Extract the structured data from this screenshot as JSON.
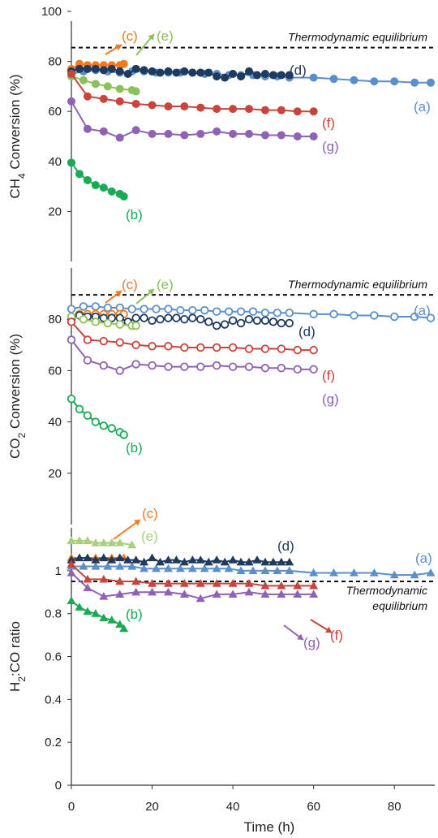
{
  "chart_data": [
    {
      "type": "line",
      "ylabel": "CH4 Conversion (%)",
      "ylabel_main": "CH",
      "ylabel_sub": "4",
      "ylabel_rest": " Conversion (%)",
      "ylim": [
        0,
        100
      ],
      "yticks": [
        "20",
        "40",
        "60",
        "80",
        "100"
      ],
      "grid": false,
      "equilibrium": {
        "label": "Thermodynamic equilibrium",
        "value": 85.5
      },
      "series": [
        {
          "name": "(a)",
          "color": "#5b8fc9",
          "marker": "circle",
          "filled": true,
          "x": [
            0,
            3,
            6,
            9,
            12,
            15,
            18,
            21,
            24,
            27,
            30,
            33,
            36,
            39,
            42,
            45,
            48,
            51,
            54,
            60,
            65,
            70,
            75,
            80,
            85,
            89
          ],
          "y": [
            75,
            76,
            76.5,
            76,
            75.5,
            76,
            76,
            75.5,
            75.5,
            75.5,
            75.5,
            75,
            75,
            74.5,
            74.5,
            74.5,
            74,
            74,
            73.5,
            73.5,
            73,
            72.5,
            72,
            72,
            71.5,
            71.5
          ]
        },
        {
          "name": "(b)",
          "color": "#1aaa55",
          "marker": "circle",
          "filled": true,
          "x": [
            0,
            2,
            4,
            6,
            8,
            10,
            12,
            13
          ],
          "y": [
            39.5,
            35,
            32.5,
            30.5,
            29.5,
            28,
            27,
            26
          ]
        },
        {
          "name": "(c)",
          "color": "#f07a20",
          "marker": "circle",
          "filled": true,
          "x": [
            0,
            2,
            4,
            6,
            8,
            10,
            12,
            13
          ],
          "y": [
            77,
            79,
            78.5,
            78.5,
            78.5,
            78.5,
            78.5,
            79
          ]
        },
        {
          "name": "(d)",
          "color": "#1f3a5f",
          "marker": "circle",
          "filled": true,
          "x": [
            0,
            2,
            4,
            6,
            8,
            10,
            12,
            14,
            16,
            18,
            20,
            22,
            24,
            26,
            28,
            30,
            32,
            34,
            36,
            38,
            40,
            42,
            44,
            46,
            48,
            50,
            52,
            54
          ],
          "y": [
            76,
            77,
            77,
            77,
            76.5,
            77,
            76,
            75,
            77,
            76.5,
            76,
            75.5,
            76,
            75.5,
            76,
            75.5,
            75.5,
            75.5,
            74,
            73.5,
            75,
            74,
            76,
            74.5,
            75,
            74.5,
            74.5,
            74.5
          ]
        },
        {
          "name": "(e)",
          "color": "#8cc05a",
          "marker": "circle",
          "filled": true,
          "x": [
            0,
            3,
            6,
            9,
            12,
            15,
            16
          ],
          "y": [
            74,
            72.5,
            71,
            70,
            69,
            68.5,
            68
          ]
        },
        {
          "name": "(f)",
          "color": "#c9443d",
          "marker": "circle",
          "filled": true,
          "x": [
            0,
            4,
            8,
            12,
            16,
            20,
            24,
            28,
            32,
            36,
            40,
            44,
            48,
            52,
            56,
            60
          ],
          "y": [
            75,
            66,
            65,
            64,
            63,
            62.5,
            62,
            62,
            61.5,
            61,
            61,
            61,
            60.5,
            60.5,
            60,
            60
          ]
        },
        {
          "name": "(g)",
          "color": "#8e62b5",
          "marker": "circle",
          "filled": true,
          "x": [
            0,
            4,
            8,
            12,
            16,
            20,
            24,
            28,
            32,
            36,
            40,
            44,
            48,
            52,
            56,
            60
          ],
          "y": [
            64,
            53,
            52,
            49.5,
            52.5,
            51,
            51,
            50.5,
            51,
            52,
            51,
            51,
            50.5,
            50.5,
            50,
            50
          ]
        }
      ]
    },
    {
      "type": "line",
      "ylabel": "CO2 Conversion (%)",
      "ylabel_main": "CO",
      "ylabel_sub": "2",
      "ylabel_rest": " Conversion (%)",
      "ylim": [
        0,
        100
      ],
      "yticks": [
        "20",
        "40",
        "60",
        "80"
      ],
      "grid": false,
      "equilibrium": {
        "label": "Thermodynamic equilibrium",
        "value": 89.5
      },
      "series": [
        {
          "name": "(a)",
          "color": "#5b8fc9",
          "marker": "circle",
          "filled": false,
          "x": [
            0,
            3,
            6,
            9,
            12,
            15,
            18,
            21,
            24,
            27,
            30,
            33,
            36,
            39,
            42,
            45,
            48,
            51,
            54,
            60,
            65,
            70,
            75,
            80,
            85,
            89
          ],
          "y": [
            84,
            85,
            85,
            84.5,
            84.5,
            84,
            84,
            84,
            84,
            83.5,
            83.5,
            83.5,
            83,
            83,
            83,
            83,
            82.5,
            82.5,
            82.5,
            82,
            82,
            81.5,
            81.5,
            81,
            81,
            80.5
          ]
        },
        {
          "name": "(b)",
          "color": "#1aaa55",
          "marker": "circle",
          "filled": false,
          "x": [
            0,
            2,
            4,
            6,
            8,
            10,
            12,
            13
          ],
          "y": [
            49,
            45,
            42.5,
            40,
            38.5,
            37.5,
            36,
            35
          ]
        },
        {
          "name": "(c)",
          "color": "#f07a20",
          "marker": "circle",
          "filled": false,
          "x": [
            0,
            2,
            4,
            6,
            8,
            10,
            12,
            13
          ],
          "y": [
            81,
            82,
            82,
            82,
            82,
            82,
            82,
            82
          ]
        },
        {
          "name": "(d)",
          "color": "#1f3a5f",
          "marker": "circle",
          "filled": false,
          "x": [
            0,
            2,
            4,
            6,
            8,
            10,
            12,
            14,
            16,
            18,
            20,
            22,
            24,
            26,
            28,
            30,
            32,
            34,
            36,
            38,
            40,
            42,
            44,
            46,
            48,
            50,
            52,
            54
          ],
          "y": [
            80,
            81.5,
            81,
            81,
            80.5,
            80.5,
            80.5,
            79,
            80.5,
            80.5,
            79.5,
            80,
            80.5,
            80.5,
            80,
            80.5,
            80,
            79,
            77.5,
            78,
            79.5,
            78.5,
            80,
            79.5,
            79.5,
            79,
            78.5,
            78.5
          ]
        },
        {
          "name": "(e)",
          "color": "#8cc05a",
          "marker": "circle",
          "filled": false,
          "x": [
            0,
            3,
            6,
            9,
            12,
            15,
            16
          ],
          "y": [
            81,
            80,
            79,
            78.5,
            78,
            77.5,
            77.5
          ]
        },
        {
          "name": "(f)",
          "color": "#c9443d",
          "marker": "circle",
          "filled": false,
          "x": [
            0,
            4,
            8,
            12,
            16,
            20,
            24,
            28,
            32,
            36,
            40,
            44,
            48,
            52,
            56,
            60
          ],
          "y": [
            79,
            72,
            71.5,
            71,
            70,
            69.5,
            69.5,
            69,
            69,
            69,
            69,
            68.5,
            68.5,
            68.5,
            68,
            68
          ]
        },
        {
          "name": "(g)",
          "color": "#8e62b5",
          "marker": "circle",
          "filled": false,
          "x": [
            0,
            4,
            8,
            12,
            16,
            20,
            24,
            28,
            32,
            36,
            40,
            44,
            48,
            52,
            56,
            60
          ],
          "y": [
            72,
            64,
            62,
            60,
            62.5,
            62,
            61.5,
            61.5,
            61.5,
            62,
            61.5,
            61.5,
            61,
            61,
            60.5,
            60.5
          ]
        }
      ]
    },
    {
      "type": "line",
      "ylabel": "H2:CO ratio",
      "ylabel_main": "H",
      "ylabel_sub": "2",
      "ylabel_rest": ":CO ratio",
      "ylim": [
        0,
        1.2
      ],
      "yticks": [
        "0",
        "0.2",
        "0.4",
        "0.6",
        "0.8",
        "1"
      ],
      "grid": false,
      "xlabel": "Time (h)",
      "xlim": [
        0,
        90
      ],
      "xticks": [
        "0",
        "20",
        "40",
        "60",
        "80"
      ],
      "equilibrium": {
        "label": "Thermodynamic equilibrium",
        "label_line1": "Thermodynamic",
        "label_line2": "equilibrium",
        "value": 0.95
      },
      "series": [
        {
          "name": "(a)",
          "color": "#5b8fc9",
          "marker": "triangle",
          "x": [
            0,
            3,
            6,
            9,
            12,
            15,
            18,
            21,
            24,
            27,
            30,
            33,
            36,
            39,
            42,
            45,
            48,
            51,
            54,
            60,
            65,
            70,
            75,
            80,
            85,
            89
          ],
          "y": [
            1.02,
            1.02,
            1.02,
            1.02,
            1.02,
            1.02,
            1.01,
            1.01,
            1.01,
            1.01,
            1.01,
            1.01,
            1.01,
            1.01,
            1.0,
            1.0,
            1.0,
            1.0,
            1.0,
            0.99,
            0.99,
            0.99,
            0.99,
            0.98,
            0.98,
            0.99
          ]
        },
        {
          "name": "(b)",
          "color": "#1aaa55",
          "marker": "triangle",
          "x": [
            0,
            2,
            4,
            6,
            8,
            10,
            12,
            13
          ],
          "y": [
            0.86,
            0.83,
            0.81,
            0.8,
            0.78,
            0.77,
            0.75,
            0.73
          ]
        },
        {
          "name": "(c)",
          "color": "#f07a20",
          "marker": "triangle",
          "x": [
            0,
            2,
            4,
            6,
            8,
            10,
            12,
            13
          ],
          "y": [
            1.06,
            1.06,
            1.06,
            1.06,
            1.06,
            1.06,
            1.06,
            1.06
          ]
        },
        {
          "name": "(d)",
          "color": "#1f3a5f",
          "marker": "triangle",
          "x": [
            0,
            2,
            4,
            6,
            8,
            10,
            12,
            14,
            16,
            18,
            20,
            22,
            24,
            26,
            28,
            30,
            32,
            34,
            36,
            38,
            40,
            42,
            44,
            46,
            48,
            50,
            52,
            54
          ],
          "y": [
            1.05,
            1.06,
            1.06,
            1.05,
            1.06,
            1.05,
            1.06,
            1.05,
            1.05,
            1.04,
            1.06,
            1.04,
            1.05,
            1.05,
            1.04,
            1.05,
            1.05,
            1.04,
            1.05,
            1.04,
            1.05,
            1.04,
            1.04,
            1.05,
            1.04,
            1.04,
            1.04,
            1.04
          ]
        },
        {
          "name": "(e)",
          "color": "#a8cf7e",
          "marker": "triangle",
          "x": [
            0,
            2,
            4,
            6,
            8,
            10,
            12,
            15
          ],
          "y": [
            1.14,
            1.14,
            1.14,
            1.13,
            1.13,
            1.13,
            1.13,
            1.12
          ]
        },
        {
          "name": "(f)",
          "color": "#c9443d",
          "marker": "triangle",
          "x": [
            0,
            4,
            8,
            12,
            16,
            20,
            24,
            28,
            32,
            36,
            40,
            44,
            48,
            52,
            56,
            60
          ],
          "y": [
            1.03,
            0.96,
            0.96,
            0.95,
            0.95,
            0.94,
            0.94,
            0.94,
            0.94,
            0.94,
            0.94,
            0.94,
            0.93,
            0.93,
            0.93,
            0.93
          ]
        },
        {
          "name": "(g)",
          "color": "#8e62b5",
          "marker": "triangle",
          "x": [
            0,
            4,
            8,
            12,
            16,
            20,
            24,
            28,
            32,
            36,
            40,
            44,
            48,
            52,
            56,
            60
          ],
          "y": [
            0.99,
            0.92,
            0.88,
            0.89,
            0.9,
            0.9,
            0.9,
            0.89,
            0.87,
            0.89,
            0.89,
            0.9,
            0.89,
            0.89,
            0.89,
            0.89
          ]
        }
      ]
    }
  ]
}
